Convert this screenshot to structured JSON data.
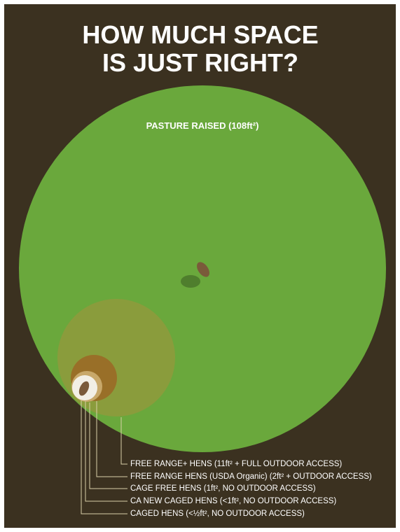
{
  "title": {
    "lines": [
      "HOW MUCH SPACE",
      "IS JUST RIGHT?"
    ]
  },
  "main_label": "PASTURE RAISED (108ft²)",
  "labels": [
    "FREE RANGE+ HENS (11ft² + FULL OUTDOOR ACCESS)",
    "FREE RANGE HENS (USDA Organic) (2ft² + OUTDOOR ACCESS)",
    "CAGE FREE HENS (1ft², NO OUTDOOR ACCESS)",
    "CA NEW CAGED HENS (<1ft², NO OUTDOOR ACCESS)",
    "CAGED HENS (<½ft², NO OUTDOOR ACCESS)"
  ]
}
